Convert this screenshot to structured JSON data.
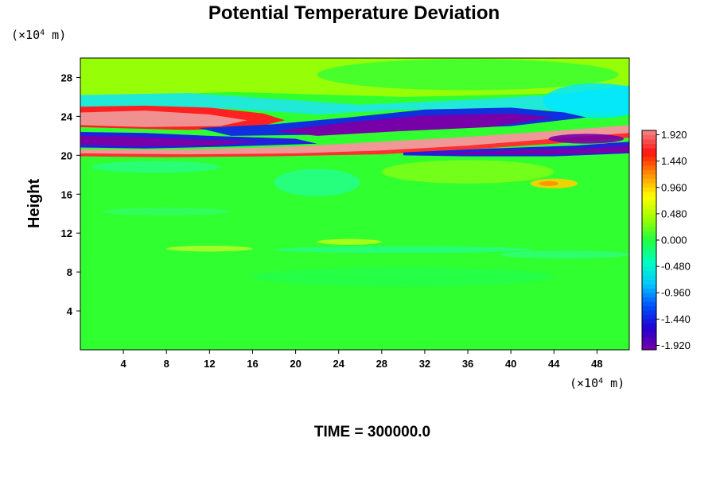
{
  "chart_data": {
    "type": "heatmap",
    "title": "Potential Temperature Deviation",
    "ylabel": "Height",
    "xlabel": "",
    "x_unit": {
      "prefix": "(×10",
      "exp": "4",
      "suffix": " m)"
    },
    "y_unit": {
      "prefix": "(×10",
      "exp": "4",
      "suffix": " m)"
    },
    "xlim": [
      0,
      51
    ],
    "ylim": [
      0,
      30
    ],
    "x_ticks": [
      "4",
      "8",
      "12",
      "16",
      "20",
      "24",
      "28",
      "32",
      "36",
      "40",
      "44",
      "48"
    ],
    "x_tick_values": [
      4,
      8,
      12,
      16,
      20,
      24,
      28,
      32,
      36,
      40,
      44,
      48
    ],
    "y_ticks": [
      "4",
      "8",
      "12",
      "16",
      "20",
      "24",
      "28"
    ],
    "y_tick_values": [
      4,
      8,
      12,
      16,
      20,
      24,
      28
    ],
    "colorbar": {
      "range": [
        -2.0,
        2.0
      ],
      "tick_labels": [
        "1.920",
        "1.440",
        "0.960",
        "0.480",
        "0.000",
        "-0.480",
        "-0.960",
        "-1.440",
        "-1.920"
      ],
      "tick_values": [
        1.92,
        1.44,
        0.96,
        0.48,
        0.0,
        -0.48,
        -0.96,
        -1.44,
        -1.92
      ],
      "levels": 50,
      "colors": [
        "#7800a8",
        "#2000d0",
        "#0050ff",
        "#00c8ff",
        "#00ffc0",
        "#20ff40",
        "#a0ff00",
        "#ffff00",
        "#ff9000",
        "#ff1010",
        "#f08888"
      ]
    },
    "annotation": "TIME = 300000.0"
  }
}
